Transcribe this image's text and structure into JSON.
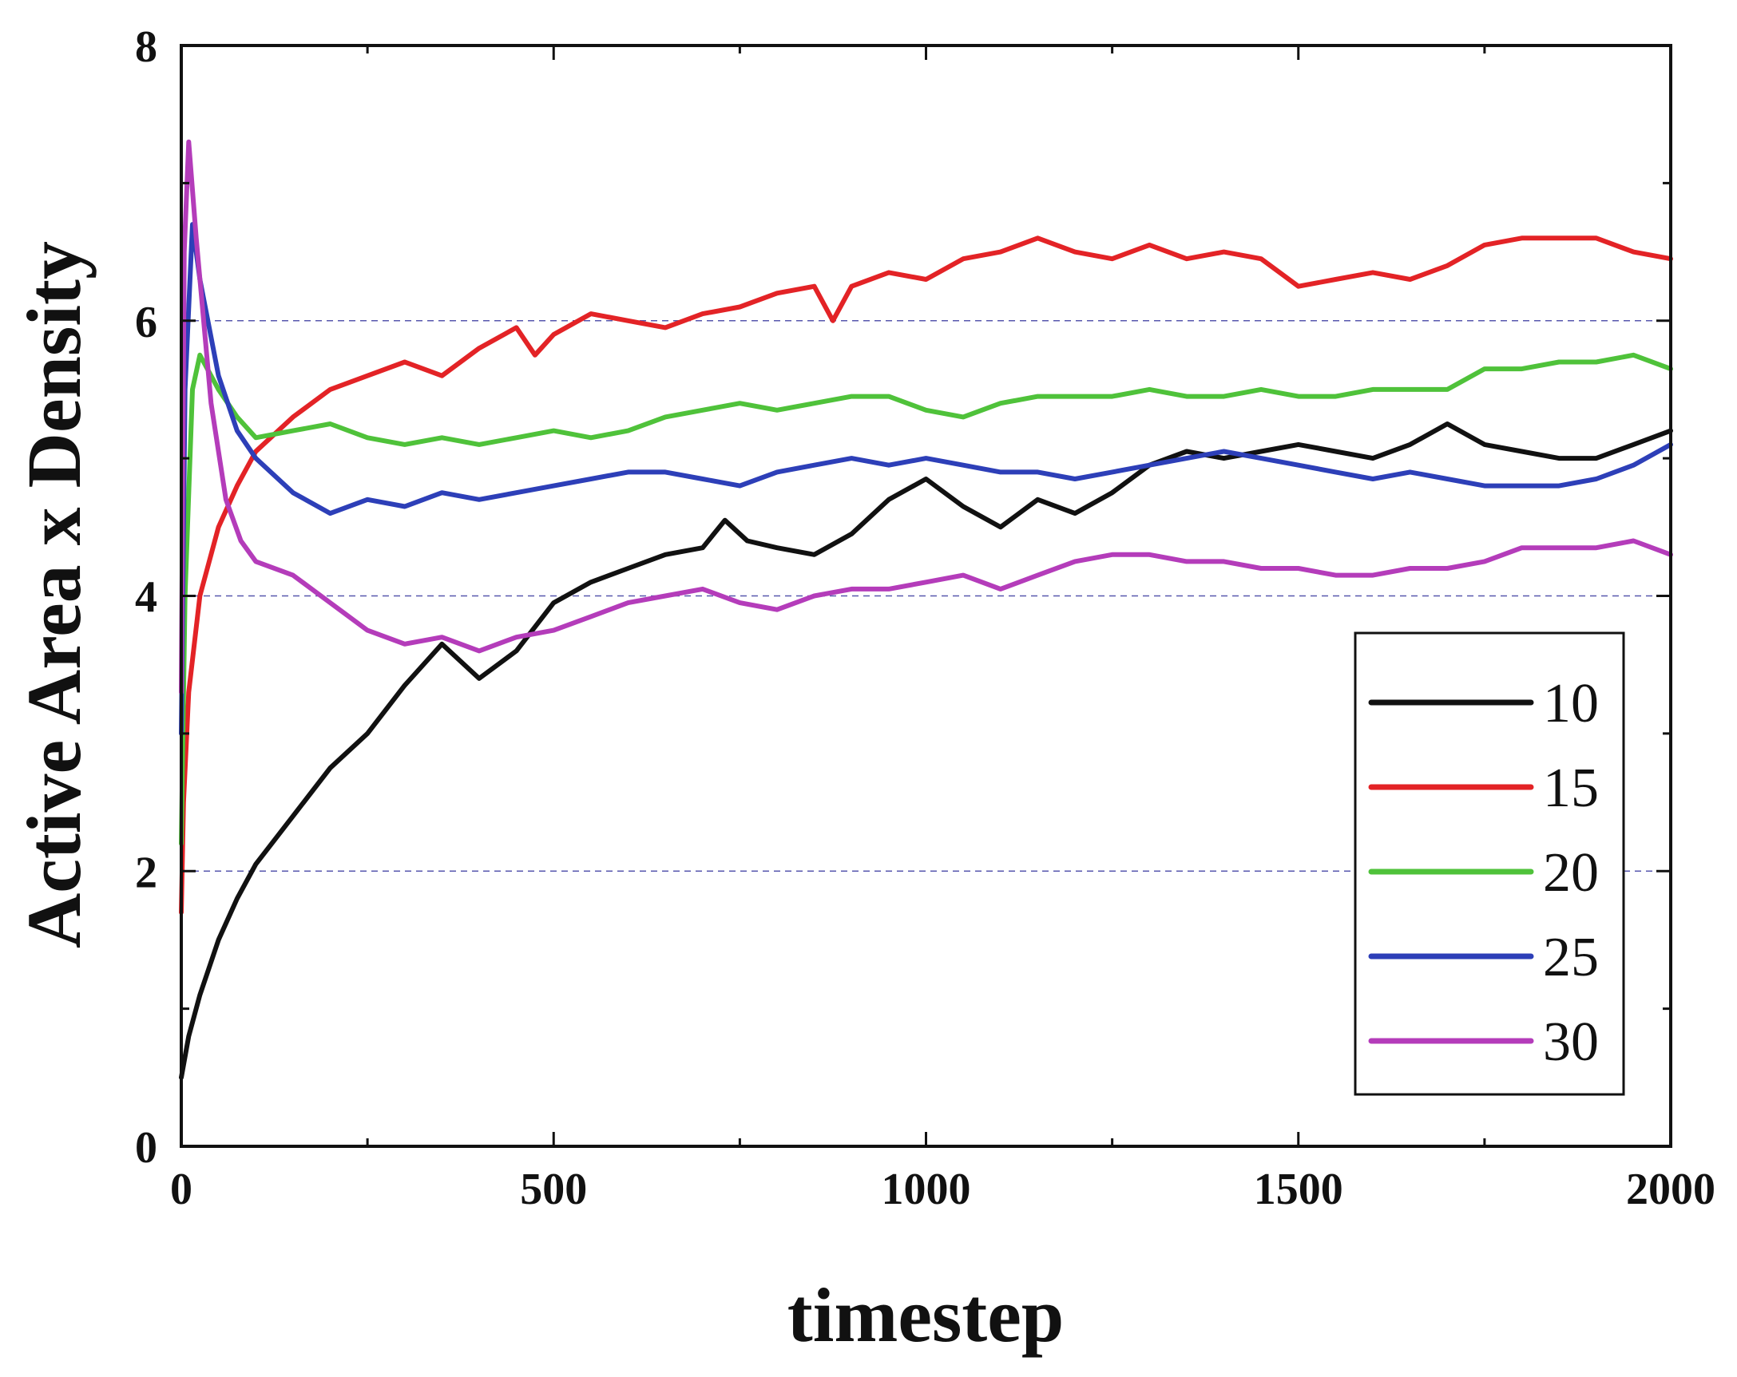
{
  "chart_data": {
    "type": "line",
    "xlabel": "timestep",
    "ylabel": "Active Area x Density",
    "xlim": [
      0,
      2000
    ],
    "ylim": [
      0,
      8
    ],
    "x_ticks": [
      0,
      500,
      1000,
      1500,
      2000
    ],
    "x_tick_labels": [
      "0",
      "500",
      "1000",
      "1500",
      "2000"
    ],
    "y_ticks": [
      0,
      2,
      4,
      6,
      8
    ],
    "y_tick_labels": [
      "0",
      "2",
      "4",
      "6",
      "8"
    ],
    "y_minor_ticks": [
      1,
      3,
      5,
      7
    ],
    "grid": "horizontal dashed at 2, 4, 6",
    "legend_position": "lower-right",
    "series": [
      {
        "name": "10",
        "color": "#111111",
        "x": [
          0,
          10,
          25,
          50,
          75,
          100,
          150,
          200,
          250,
          300,
          350,
          400,
          450,
          500,
          550,
          600,
          650,
          700,
          730,
          760,
          800,
          850,
          900,
          950,
          1000,
          1050,
          1100,
          1150,
          1200,
          1250,
          1300,
          1350,
          1400,
          1450,
          1500,
          1550,
          1600,
          1650,
          1700,
          1750,
          1800,
          1850,
          1900,
          1950,
          2000
        ],
        "y": [
          0.5,
          0.8,
          1.1,
          1.5,
          1.8,
          2.05,
          2.4,
          2.75,
          3.0,
          3.35,
          3.65,
          3.4,
          3.6,
          3.95,
          4.1,
          4.2,
          4.3,
          4.35,
          4.55,
          4.4,
          4.35,
          4.3,
          4.45,
          4.7,
          4.85,
          4.65,
          4.5,
          4.7,
          4.6,
          4.75,
          4.95,
          5.05,
          5.0,
          5.05,
          5.1,
          5.05,
          5.0,
          5.1,
          5.25,
          5.1,
          5.05,
          5.0,
          5.0,
          5.1,
          5.2
        ]
      },
      {
        "name": "15",
        "color": "#e32326",
        "x": [
          0,
          3,
          10,
          25,
          50,
          75,
          100,
          150,
          200,
          250,
          300,
          350,
          400,
          450,
          475,
          500,
          550,
          600,
          650,
          700,
          750,
          800,
          850,
          875,
          900,
          950,
          1000,
          1050,
          1100,
          1150,
          1200,
          1250,
          1300,
          1350,
          1400,
          1450,
          1500,
          1550,
          1600,
          1650,
          1700,
          1750,
          1800,
          1850,
          1900,
          1950,
          2000
        ],
        "y": [
          1.7,
          2.5,
          3.3,
          4.0,
          4.5,
          4.8,
          5.05,
          5.3,
          5.5,
          5.6,
          5.7,
          5.6,
          5.8,
          5.95,
          5.75,
          5.9,
          6.05,
          6.0,
          5.95,
          6.05,
          6.1,
          6.2,
          6.25,
          6.0,
          6.25,
          6.35,
          6.3,
          6.45,
          6.5,
          6.6,
          6.5,
          6.45,
          6.55,
          6.45,
          6.5,
          6.45,
          6.25,
          6.3,
          6.35,
          6.3,
          6.4,
          6.55,
          6.6,
          6.6,
          6.6,
          6.5,
          6.45
        ]
      },
      {
        "name": "20",
        "color": "#4fc23a",
        "x": [
          0,
          5,
          15,
          25,
          50,
          75,
          100,
          150,
          200,
          250,
          300,
          350,
          400,
          450,
          500,
          550,
          600,
          650,
          700,
          750,
          800,
          850,
          900,
          950,
          1000,
          1050,
          1100,
          1150,
          1200,
          1250,
          1300,
          1350,
          1400,
          1450,
          1500,
          1550,
          1600,
          1650,
          1700,
          1750,
          1800,
          1850,
          1900,
          1950,
          2000
        ],
        "y": [
          2.2,
          4.0,
          5.5,
          5.75,
          5.5,
          5.3,
          5.15,
          5.2,
          5.25,
          5.15,
          5.1,
          5.15,
          5.1,
          5.15,
          5.2,
          5.15,
          5.2,
          5.3,
          5.35,
          5.4,
          5.35,
          5.4,
          5.45,
          5.45,
          5.35,
          5.3,
          5.4,
          5.45,
          5.45,
          5.45,
          5.5,
          5.45,
          5.45,
          5.5,
          5.45,
          5.45,
          5.5,
          5.5,
          5.5,
          5.65,
          5.65,
          5.7,
          5.7,
          5.75,
          5.65
        ]
      },
      {
        "name": "25",
        "color": "#2d3fb8",
        "x": [
          0,
          5,
          15,
          25,
          50,
          75,
          100,
          150,
          200,
          250,
          300,
          350,
          400,
          450,
          500,
          550,
          600,
          650,
          700,
          750,
          800,
          850,
          900,
          950,
          1000,
          1050,
          1100,
          1150,
          1200,
          1250,
          1300,
          1350,
          1400,
          1450,
          1500,
          1550,
          1600,
          1650,
          1700,
          1750,
          1800,
          1850,
          1900,
          1950,
          2000
        ],
        "y": [
          3.0,
          5.5,
          6.7,
          6.3,
          5.6,
          5.2,
          5.0,
          4.75,
          4.6,
          4.7,
          4.65,
          4.75,
          4.7,
          4.75,
          4.8,
          4.85,
          4.9,
          4.9,
          4.85,
          4.8,
          4.9,
          4.95,
          5.0,
          4.95,
          5.0,
          4.95,
          4.9,
          4.9,
          4.85,
          4.9,
          4.95,
          5.0,
          5.05,
          5.0,
          4.95,
          4.9,
          4.85,
          4.9,
          4.85,
          4.8,
          4.8,
          4.8,
          4.85,
          4.95,
          5.1
        ]
      },
      {
        "name": "30",
        "color": "#b43cba",
        "x": [
          0,
          4,
          10,
          20,
          40,
          60,
          80,
          100,
          150,
          200,
          250,
          300,
          350,
          400,
          450,
          500,
          550,
          600,
          650,
          700,
          750,
          800,
          850,
          900,
          950,
          1000,
          1050,
          1100,
          1150,
          1200,
          1250,
          1300,
          1350,
          1400,
          1450,
          1500,
          1550,
          1600,
          1650,
          1700,
          1750,
          1800,
          1850,
          1900,
          1950,
          2000
        ],
        "y": [
          3.3,
          6.5,
          7.3,
          6.6,
          5.4,
          4.7,
          4.4,
          4.25,
          4.15,
          3.95,
          3.75,
          3.65,
          3.7,
          3.6,
          3.7,
          3.75,
          3.85,
          3.95,
          4.0,
          4.05,
          3.95,
          3.9,
          4.0,
          4.05,
          4.05,
          4.1,
          4.15,
          4.05,
          4.15,
          4.25,
          4.3,
          4.3,
          4.25,
          4.25,
          4.2,
          4.2,
          4.15,
          4.15,
          4.2,
          4.2,
          4.25,
          4.35,
          4.35,
          4.35,
          4.4,
          4.3
        ]
      }
    ]
  }
}
